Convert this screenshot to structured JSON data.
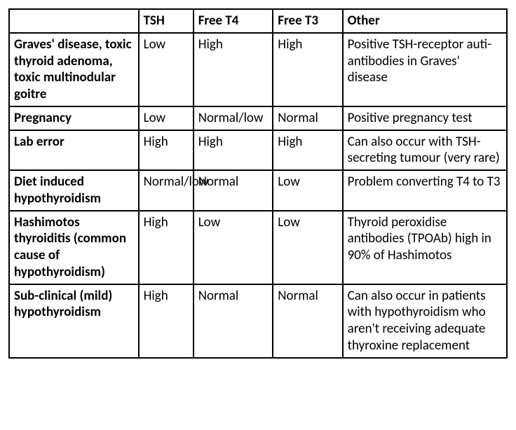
{
  "table": {
    "type": "table",
    "columns": [
      {
        "key": "condition",
        "label": "",
        "width": "26%",
        "bold": true
      },
      {
        "key": "tsh",
        "label": "TSH",
        "width": "11%"
      },
      {
        "key": "freet4",
        "label": "Free T4",
        "width": "16%"
      },
      {
        "key": "freet3",
        "label": "Free T3",
        "width": "14%"
      },
      {
        "key": "other",
        "label": "Other",
        "width": "33%"
      }
    ],
    "rows": [
      {
        "condition": "Graves' disease, toxic thyroid adenoma, toxic multinodular goitre",
        "tsh": "Low",
        "freet4": "High",
        "freet3": "High",
        "other": "Positive TSH-receptor auti-antibodies in Graves' disease"
      },
      {
        "condition": "Pregnancy",
        "tsh": "Low",
        "freet4": "Normal/low",
        "freet3": "Normal",
        "other": "Positive pregnancy test"
      },
      {
        "condition": "Lab error",
        "tsh": "High",
        "freet4": "High",
        "freet3": "High",
        "other": "Can also occur with TSH-secreting tumour (very rare)"
      },
      {
        "condition": "Diet induced hypothyroidism",
        "tsh": "Normal/low",
        "freet4": "Normal",
        "freet3": "Low",
        "other": "Problem converting T4 to T3"
      },
      {
        "condition": "Hashimotos thyroiditis (common cause of hypothyroidism)",
        "tsh": "High",
        "freet4": "Low",
        "freet3": "Low",
        "other": "Thyroid peroxidise antibodies (TPOAb) high in 90% of Hashimotos"
      },
      {
        "condition": "Sub-clinical (mild) hypothyroidism",
        "tsh": "High",
        "freet4": "Normal",
        "freet3": "Normal",
        "other": "Can also occur in patients with hypothyroidism who aren't receiving adequate thyroxine replacement"
      }
    ],
    "border_color": "#000000",
    "background_color": "#ffffff",
    "text_color": "#000000",
    "font_size": 19,
    "header_font_weight": "bold",
    "row_label_font_weight": "bold"
  }
}
